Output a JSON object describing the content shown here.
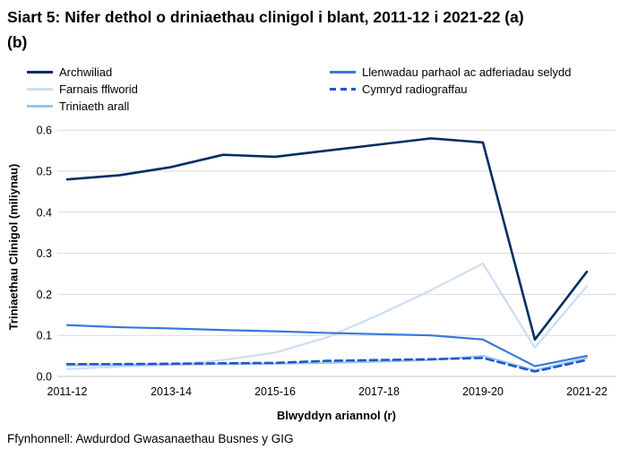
{
  "title": "Siart 5: Nifer dethol o driniaethau clinigol i blant, 2011-12 i 2021-22 (a) (b)",
  "source": "Ffynhonnell: Awdurdod Gwasanaethau Busnes y GIG",
  "colors": {
    "gridline": "#d9d9d9",
    "axis_line": "#c0c0c0",
    "text": "#000000"
  },
  "chart_data": {
    "type": "line",
    "title": "Siart 5: Nifer dethol o driniaethau clinigol i blant, 2011-12 i 2021-22 (a) (b)",
    "xlabel": "Blwyddyn ariannol (r)",
    "ylabel": "Triniaethau Clinigol (miliynau)",
    "x": [
      "2011-12",
      "2012-13",
      "2013-14",
      "2014-15",
      "2015-16",
      "2016-17",
      "2017-18",
      "2018-19",
      "2019-20",
      "2020-21",
      "2021-22"
    ],
    "x_tick_labels": [
      "2011-12",
      "2013-14",
      "2015-16",
      "2017-18",
      "2019-20",
      "2021-22"
    ],
    "y_ticks": [
      0.0,
      0.1,
      0.2,
      0.3,
      0.4,
      0.5,
      0.6
    ],
    "ylim": [
      0.0,
      0.6
    ],
    "grid": "horizontal",
    "legend_position": "top-two-columns",
    "series": [
      {
        "name": "Archwiliad",
        "color": "#002d62",
        "dash": false,
        "values": [
          0.48,
          0.49,
          0.51,
          0.54,
          0.535,
          0.55,
          0.565,
          0.58,
          0.57,
          0.09,
          0.255
        ]
      },
      {
        "name": "Farnais fflworid",
        "color": "#cdddf4",
        "dash": false,
        "values": [
          0.018,
          0.024,
          0.028,
          0.04,
          0.058,
          0.095,
          0.15,
          0.21,
          0.275,
          0.07,
          0.22
        ]
      },
      {
        "name": "Triniaeth arall",
        "color": "#9fc5ea",
        "dash": false,
        "values": [
          0.027,
          0.028,
          0.029,
          0.03,
          0.031,
          0.033,
          0.036,
          0.04,
          0.05,
          0.015,
          0.045
        ]
      },
      {
        "name": "Llenwadau parhaol ac adferiadau selydd",
        "color": "#3778dd",
        "dash": false,
        "values": [
          0.125,
          0.12,
          0.117,
          0.113,
          0.11,
          0.106,
          0.103,
          0.1,
          0.09,
          0.025,
          0.05
        ]
      },
      {
        "name": "Cymryd radiograffau",
        "color": "#2057c9",
        "dash": true,
        "values": [
          0.03,
          0.03,
          0.031,
          0.032,
          0.033,
          0.038,
          0.04,
          0.042,
          0.045,
          0.012,
          0.04
        ]
      }
    ]
  }
}
